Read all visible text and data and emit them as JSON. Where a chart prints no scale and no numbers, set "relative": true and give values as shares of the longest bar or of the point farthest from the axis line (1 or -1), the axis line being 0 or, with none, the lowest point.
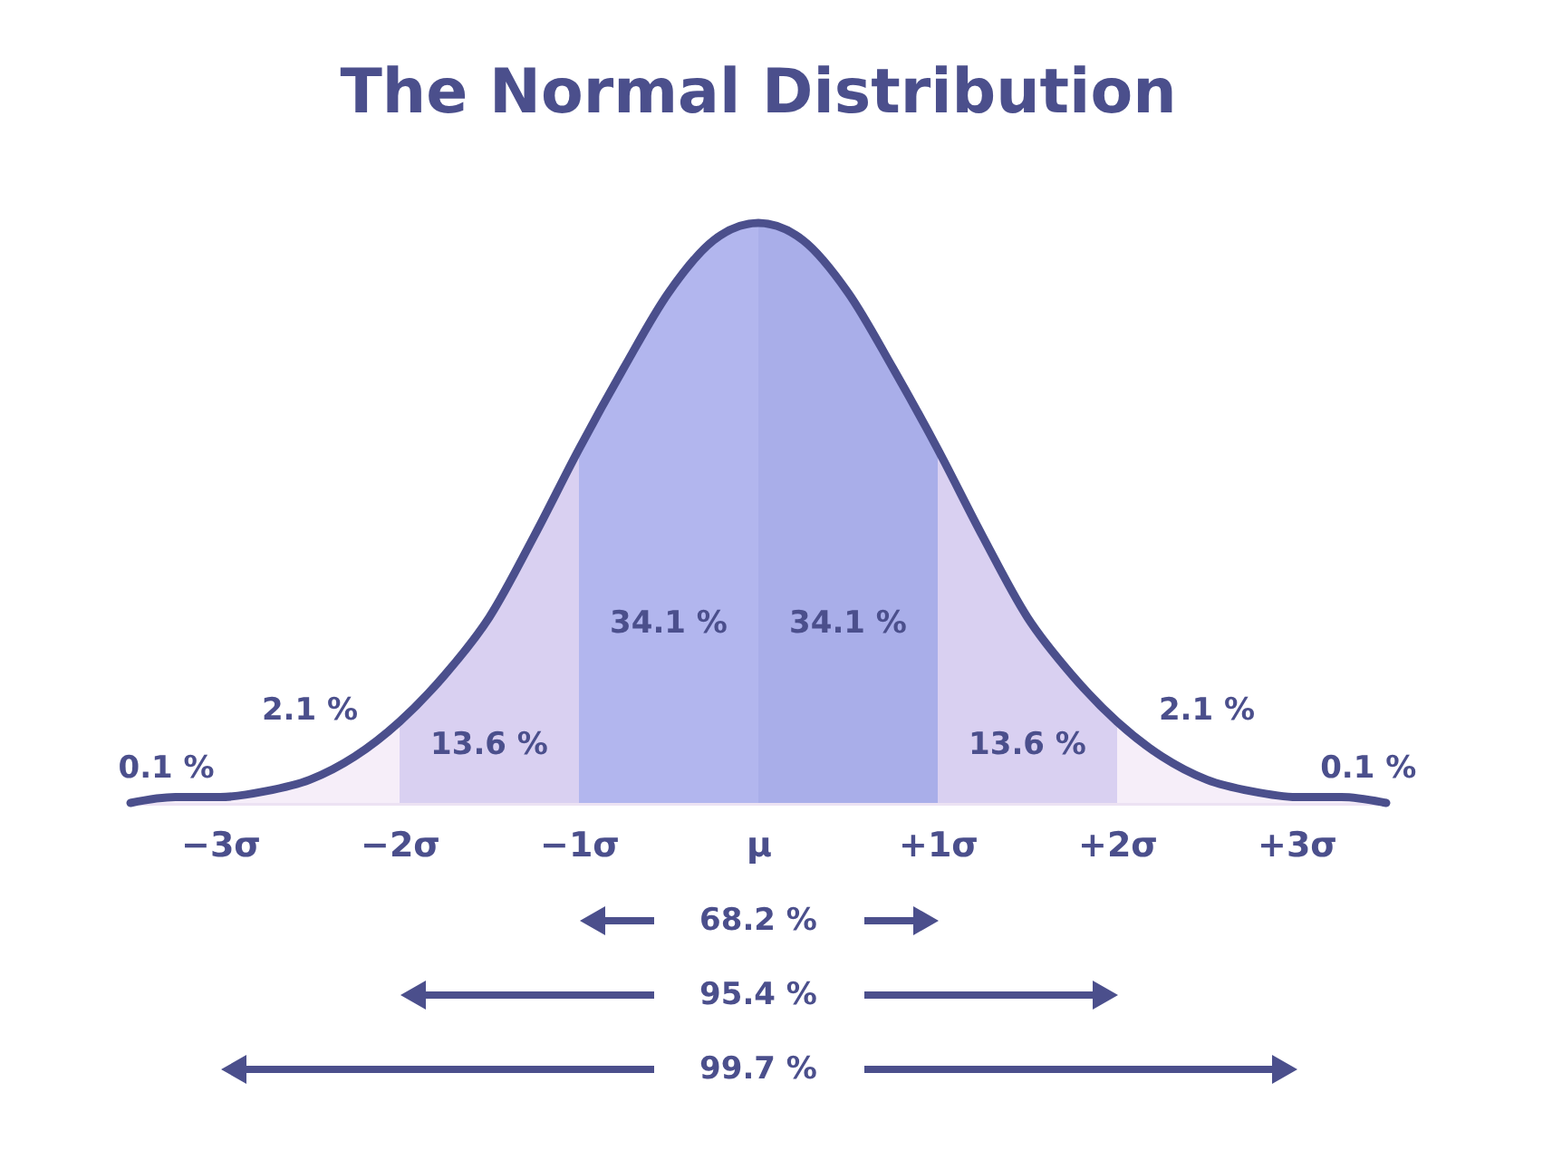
{
  "chart_data": {
    "type": "area",
    "title": "The Normal Distribution",
    "relative": true,
    "xlim": [
      -3.5,
      3.5
    ],
    "xticks": [
      {
        "value": -3,
        "label": "−3σ"
      },
      {
        "value": -2,
        "label": "−2σ"
      },
      {
        "value": -1,
        "label": "−1σ"
      },
      {
        "value": 0,
        "label": "μ"
      },
      {
        "value": 1,
        "label": "+1σ"
      },
      {
        "value": 2,
        "label": "+2σ"
      },
      {
        "value": 3,
        "label": "+3σ"
      }
    ],
    "grid": false,
    "series": [
      {
        "color": "#f6eef9",
        "x": [
          -3.5,
          -3.25,
          -3,
          -2.75,
          -2.5,
          -2.25,
          -2
        ],
        "values": [
          0,
          0.01,
          0.01,
          0.02,
          0.04,
          0.08,
          0.14
        ]
      },
      {
        "color": "#d9d0f1",
        "x": [
          -2,
          -1.75,
          -1.5,
          -1.25,
          -1
        ],
        "values": [
          0.14,
          0.22,
          0.32,
          0.46,
          0.61
        ]
      },
      {
        "color": "#b2b6ee",
        "x": [
          -1,
          -0.75,
          -0.5,
          -0.25,
          0
        ],
        "values": [
          0.61,
          0.75,
          0.88,
          0.97,
          1
        ]
      },
      {
        "color": "#a9aee9",
        "x": [
          0,
          0.25,
          0.5,
          0.75,
          1
        ],
        "values": [
          1,
          0.97,
          0.88,
          0.75,
          0.61
        ]
      },
      {
        "color": "#d9d0f1",
        "x": [
          1,
          1.25,
          1.5,
          1.75,
          2
        ],
        "values": [
          0.61,
          0.46,
          0.32,
          0.22,
          0.14
        ]
      },
      {
        "color": "#f6eef9",
        "x": [
          2,
          2.25,
          2.5,
          2.75,
          3,
          3.25,
          3.5
        ],
        "values": [
          0.14,
          0.08,
          0.04,
          0.02,
          0.01,
          0.01,
          0
        ]
      },
      {
        "type": "line",
        "color": "#4b4f8c",
        "x": [
          -3.5,
          -3.25,
          -3,
          -2.75,
          -2.5,
          -2.25,
          -2,
          -1.75,
          -1.5,
          -1.25,
          -1,
          -0.75,
          -0.5,
          -0.25,
          0,
          0.25,
          0.5,
          0.75,
          1,
          1.25,
          1.5,
          1.75,
          2,
          2.25,
          2.5,
          2.75,
          3,
          3.25,
          3.5
        ],
        "values": [
          0,
          0.01,
          0.01,
          0.02,
          0.04,
          0.08,
          0.14,
          0.22,
          0.32,
          0.46,
          0.61,
          0.75,
          0.88,
          0.97,
          1,
          0.97,
          0.88,
          0.75,
          0.61,
          0.46,
          0.32,
          0.22,
          0.14,
          0.08,
          0.04,
          0.02,
          0.01,
          0.01,
          0
        ]
      }
    ],
    "annotations": [
      "0.1 %",
      "2.1 %",
      "13.6 %",
      "34.1 %",
      "34.1 %",
      "13.6 %",
      "2.1 %",
      "0.1 %",
      "68.2 %",
      "95.4 %",
      "99.7 %"
    ]
  }
}
